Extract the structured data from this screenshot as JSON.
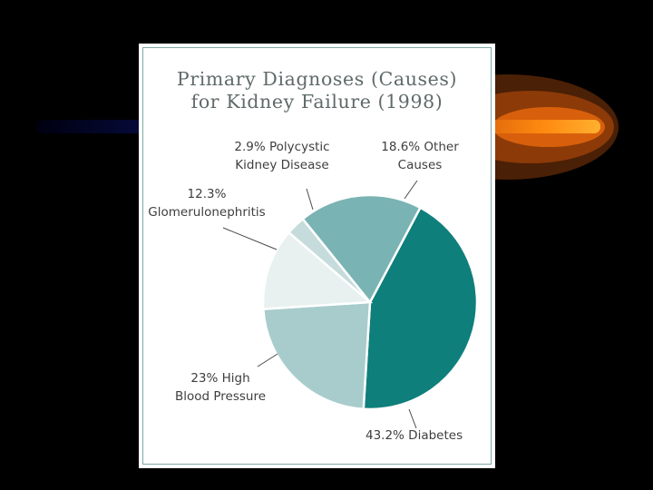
{
  "slide": {
    "background": "#000000"
  },
  "chart_data": {
    "type": "pie",
    "title_lines": [
      "Primary Diagnoses (Causes)",
      "for Kidney Failure (1998)"
    ],
    "slices": [
      {
        "label_lines": [
          "43.2% Diabetes"
        ],
        "value": 43.2,
        "color": "#0f7f7b"
      },
      {
        "label_lines": [
          "23% High",
          "Blood Pressure"
        ],
        "value": 23.0,
        "color": "#a8cccc"
      },
      {
        "label_lines": [
          "12.3%",
          "Glomerulonephritis"
        ],
        "value": 12.3,
        "color": "#e8f0f0"
      },
      {
        "label_lines": [
          "2.9% Polycystic",
          "Kidney Disease"
        ],
        "value": 2.9,
        "color": "#c6dcdc"
      },
      {
        "label_lines": [
          "18.6% Other",
          "Causes"
        ],
        "value": 18.6,
        "color": "#7ab3b3"
      }
    ],
    "legend": "none",
    "grid": false
  }
}
